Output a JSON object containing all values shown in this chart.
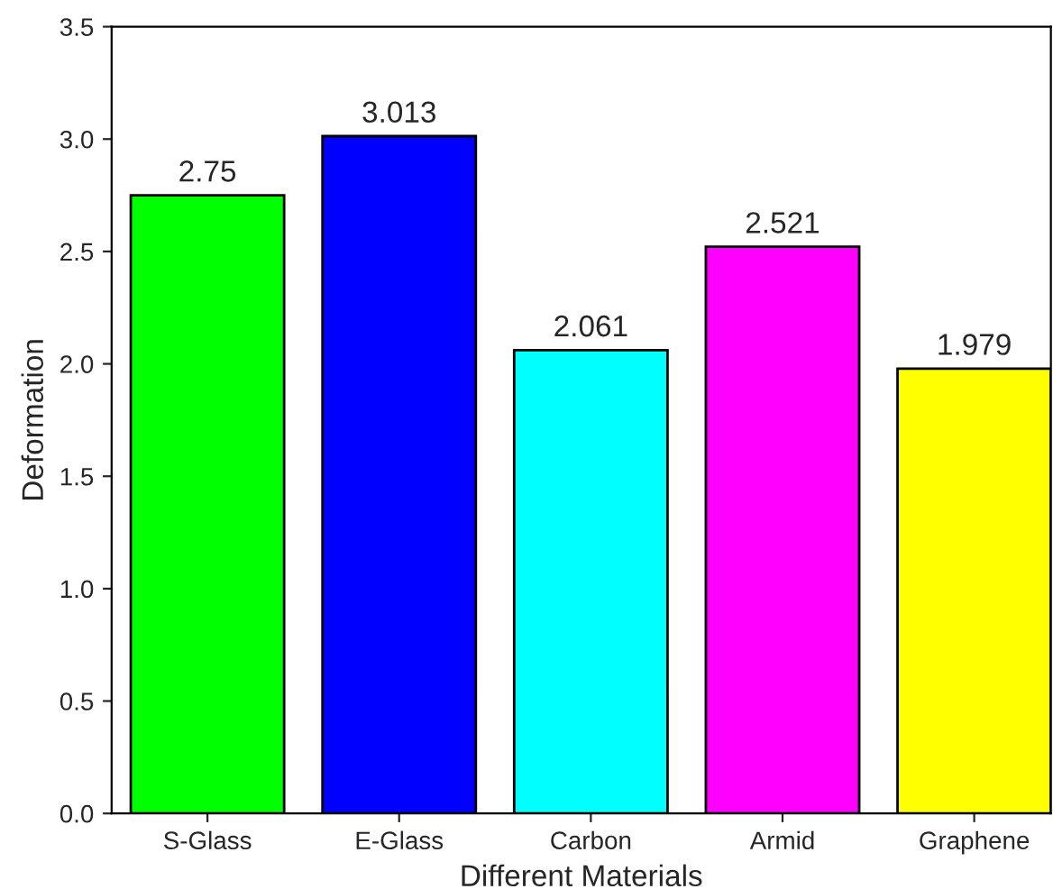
{
  "chart_data": {
    "type": "bar",
    "xlabel": "Different Materials",
    "ylabel": "Deformation",
    "categories": [
      "S-Glass",
      "E-Glass",
      "Carbon",
      "Armid",
      "Graphene"
    ],
    "values": [
      2.75,
      3.013,
      2.061,
      2.521,
      1.979
    ],
    "colors": [
      "#00ff00",
      "#0000ff",
      "#00ffff",
      "#ff00ff",
      "#ffff00"
    ],
    "value_labels": [
      "2.75",
      "3.013",
      "2.061",
      "2.521",
      "1.979"
    ],
    "ylim": [
      0,
      3.5
    ],
    "yticks": [
      {
        "value": 0,
        "label": "0.0"
      },
      {
        "value": 0.5,
        "label": "0.5"
      },
      {
        "value": 1,
        "label": "1.0"
      },
      {
        "value": 1.5,
        "label": "1.5"
      },
      {
        "value": 2,
        "label": "2.0"
      },
      {
        "value": 2.5,
        "label": "2.5"
      },
      {
        "value": 3,
        "label": "3.0"
      },
      {
        "value": 3.5,
        "label": "3.5"
      }
    ],
    "grid": false,
    "legend": false
  }
}
